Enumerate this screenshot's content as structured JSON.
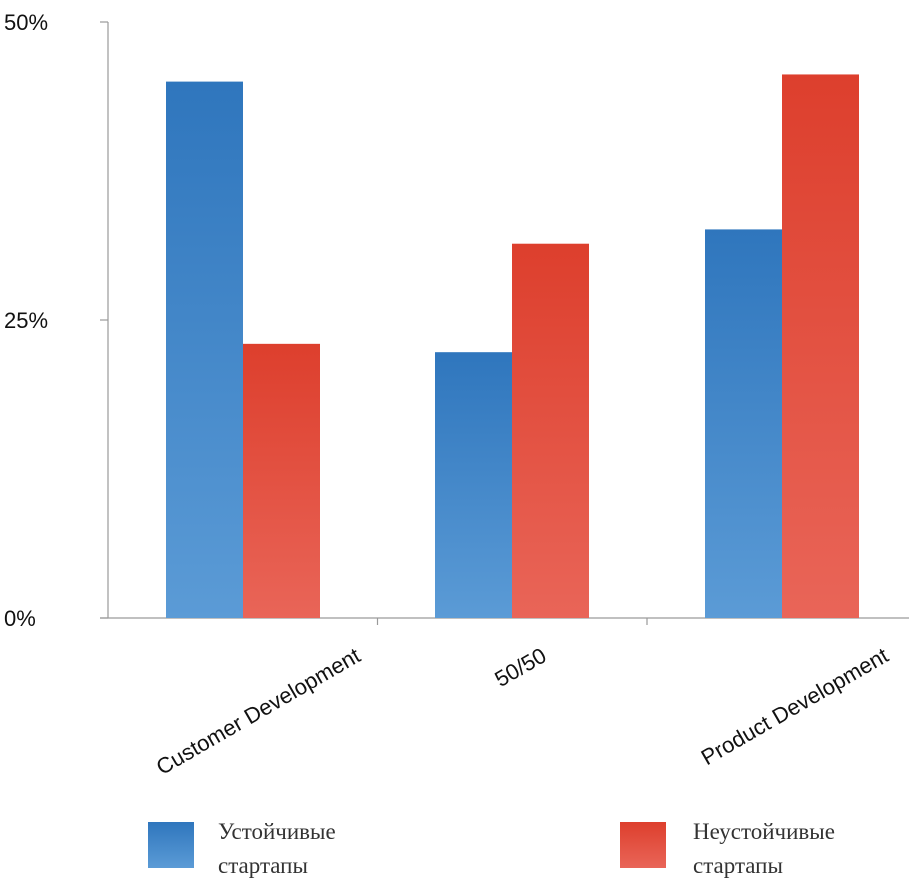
{
  "chart_data": {
    "type": "bar",
    "title": "",
    "xlabel": "",
    "ylabel": "",
    "categories": [
      "Customer Development",
      "50/50",
      "Product Development"
    ],
    "series": [
      {
        "name": "Устойчивые стартапы",
        "color": "#3a80c4",
        "values": [
          45,
          22.3,
          32.6
        ]
      },
      {
        "name": "Неустойчивые стартапы",
        "color": "#e0483a",
        "values": [
          23,
          31.4,
          45.6
        ]
      }
    ],
    "ylim": [
      0,
      50
    ],
    "yticks": [
      0,
      25,
      50
    ],
    "ytick_labels": [
      "0%",
      "25%",
      "50%"
    ],
    "grid": false,
    "legend": {
      "position": "bottom",
      "entries": [
        {
          "line1": "Устойчивые",
          "line2": "стартапы"
        },
        {
          "line1": "Неустойчивые",
          "line2": "стартапы"
        }
      ]
    }
  }
}
